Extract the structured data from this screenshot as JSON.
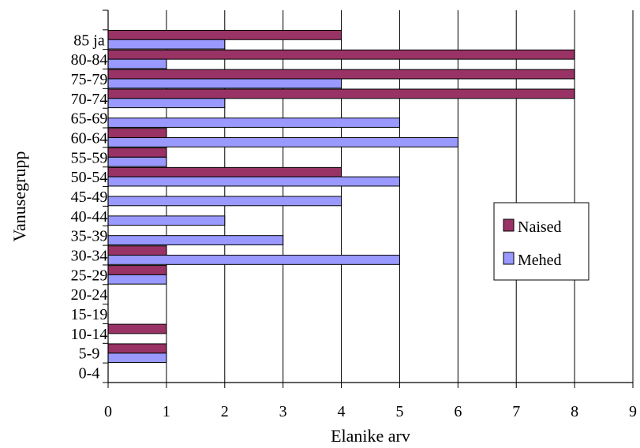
{
  "chart_data": {
    "type": "bar",
    "orientation": "horizontal",
    "xlabel": "Elanike arv",
    "ylabel": "Vanusegrupp",
    "xlim": [
      0,
      9
    ],
    "x_ticks": [
      "0",
      "1",
      "2",
      "3",
      "4",
      "5",
      "6",
      "7",
      "8",
      "9"
    ],
    "grid": true,
    "legend_position": "right",
    "categories": [
      "0-4",
      "5-9",
      "10-14",
      "15-19",
      "20-24",
      "25-29",
      "30-34",
      "35-39",
      "40-44",
      "45-49",
      "50-54",
      "55-59",
      "60-64",
      "65-69",
      "70-74",
      "75-79",
      "80-84",
      "85 ja"
    ],
    "series": [
      {
        "name": "Naised",
        "color": "#993366",
        "values": [
          0,
          1,
          1,
          0,
          0,
          1,
          1,
          0,
          0,
          0,
          4,
          1,
          1,
          0,
          8,
          8,
          8,
          4
        ]
      },
      {
        "name": "Mehed",
        "color": "#9999ff",
        "values": [
          0,
          1,
          0,
          0,
          0,
          1,
          5,
          3,
          2,
          4,
          5,
          1,
          6,
          5,
          2,
          4,
          1,
          2
        ]
      }
    ]
  }
}
